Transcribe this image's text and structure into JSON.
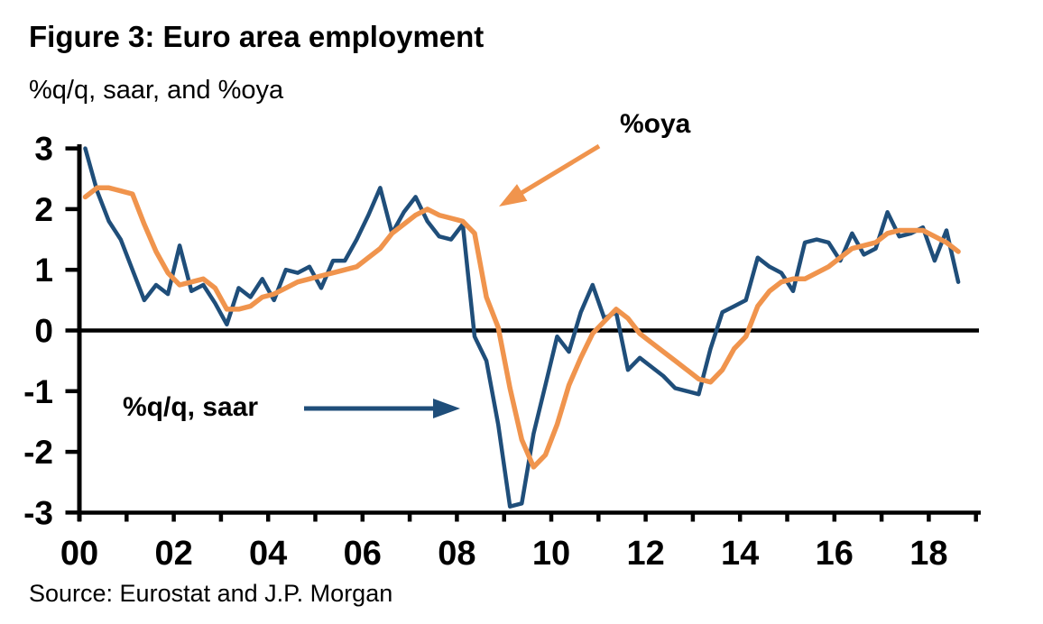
{
  "title": "Figure 3: Euro area employment",
  "subtitle": "%q/q, saar, and %oya",
  "source": "Source: Eurostat and J.P. Morgan",
  "annotations": {
    "oya_label": "%oya",
    "saar_label": "%q/q, saar",
    "oya_arrow": {
      "from": [
        664,
        162
      ],
      "to": [
        553,
        229
      ]
    },
    "saar_arrow": {
      "from": [
        337,
        453
      ],
      "to": [
        510,
        453
      ]
    }
  },
  "colors": {
    "saar_line": "#1F4E7A",
    "oya_line": "#F0944D",
    "axis": "#000000"
  },
  "chart_data": {
    "type": "line",
    "title": "Figure 3: Euro area employment",
    "ylabel": "%q/q, saar, and %oya",
    "xlim": [
      2000,
      2019.05
    ],
    "ylim": [
      -3,
      3
    ],
    "grid": false,
    "legend_position": "inline-annotations",
    "x_unit": "quarterly",
    "x_start": 2000.125,
    "x_step": 0.25,
    "y_ticks": [
      {
        "v": 3,
        "label": "3"
      },
      {
        "v": 2,
        "label": "2"
      },
      {
        "v": 1,
        "label": "1"
      },
      {
        "v": 0,
        "label": "0"
      },
      {
        "v": -1,
        "label": "-1"
      },
      {
        "v": -2,
        "label": "-2"
      },
      {
        "v": -3,
        "label": "-3"
      }
    ],
    "x_minor_tick_years": [
      2000,
      2001,
      2002,
      2003,
      2004,
      2005,
      2006,
      2007,
      2008,
      2009,
      2010,
      2011,
      2012,
      2013,
      2014,
      2015,
      2016,
      2017,
      2018,
      2019
    ],
    "x_tick_labels": [
      {
        "year": 2000,
        "label": "00"
      },
      {
        "year": 2002,
        "label": "02"
      },
      {
        "year": 2004,
        "label": "04"
      },
      {
        "year": 2006,
        "label": "06"
      },
      {
        "year": 2008,
        "label": "08"
      },
      {
        "year": 2010,
        "label": "10"
      },
      {
        "year": 2012,
        "label": "12"
      },
      {
        "year": 2014,
        "label": "14"
      },
      {
        "year": 2016,
        "label": "16"
      },
      {
        "year": 2018,
        "label": "18"
      }
    ],
    "zero_line": true,
    "series": [
      {
        "name": "%q/q, saar",
        "color_key": "saar_line",
        "stroke_width": 4.5,
        "values": [
          3.0,
          2.3,
          1.8,
          1.5,
          1.0,
          0.5,
          0.75,
          0.6,
          1.4,
          0.65,
          0.75,
          0.45,
          0.1,
          0.7,
          0.55,
          0.85,
          0.5,
          1.0,
          0.95,
          1.05,
          0.7,
          1.15,
          1.15,
          1.5,
          1.9,
          2.35,
          1.6,
          1.95,
          2.2,
          1.8,
          1.55,
          1.5,
          1.75,
          -0.1,
          -0.5,
          -1.55,
          -2.9,
          -2.85,
          -1.7,
          -0.9,
          -0.1,
          -0.35,
          0.3,
          0.75,
          0.2,
          0.3,
          -0.65,
          -0.45,
          -0.6,
          -0.75,
          -0.95,
          -1.0,
          -1.05,
          -0.3,
          0.3,
          0.4,
          0.5,
          1.2,
          1.05,
          0.95,
          0.65,
          1.45,
          1.5,
          1.45,
          1.15,
          1.6,
          1.25,
          1.35,
          1.95,
          1.55,
          1.6,
          1.7,
          1.15,
          1.65,
          0.8
        ]
      },
      {
        "name": "%oya",
        "color_key": "oya_line",
        "stroke_width": 5.5,
        "values": [
          2.2,
          2.35,
          2.35,
          2.3,
          2.25,
          1.75,
          1.3,
          0.95,
          0.75,
          0.8,
          0.85,
          0.7,
          0.35,
          0.35,
          0.4,
          0.55,
          0.6,
          0.7,
          0.8,
          0.85,
          0.9,
          0.95,
          1.0,
          1.05,
          1.2,
          1.35,
          1.6,
          1.75,
          1.9,
          2.0,
          1.9,
          1.85,
          1.8,
          1.6,
          0.55,
          0.05,
          -0.95,
          -1.8,
          -2.25,
          -2.05,
          -1.55,
          -0.9,
          -0.45,
          -0.05,
          0.15,
          0.35,
          0.2,
          -0.05,
          -0.2,
          -0.35,
          -0.5,
          -0.65,
          -0.8,
          -0.85,
          -0.65,
          -0.3,
          -0.1,
          0.4,
          0.65,
          0.8,
          0.85,
          0.85,
          0.95,
          1.05,
          1.2,
          1.35,
          1.4,
          1.45,
          1.6,
          1.65,
          1.65,
          1.65,
          1.55,
          1.45,
          1.3
        ]
      }
    ]
  }
}
